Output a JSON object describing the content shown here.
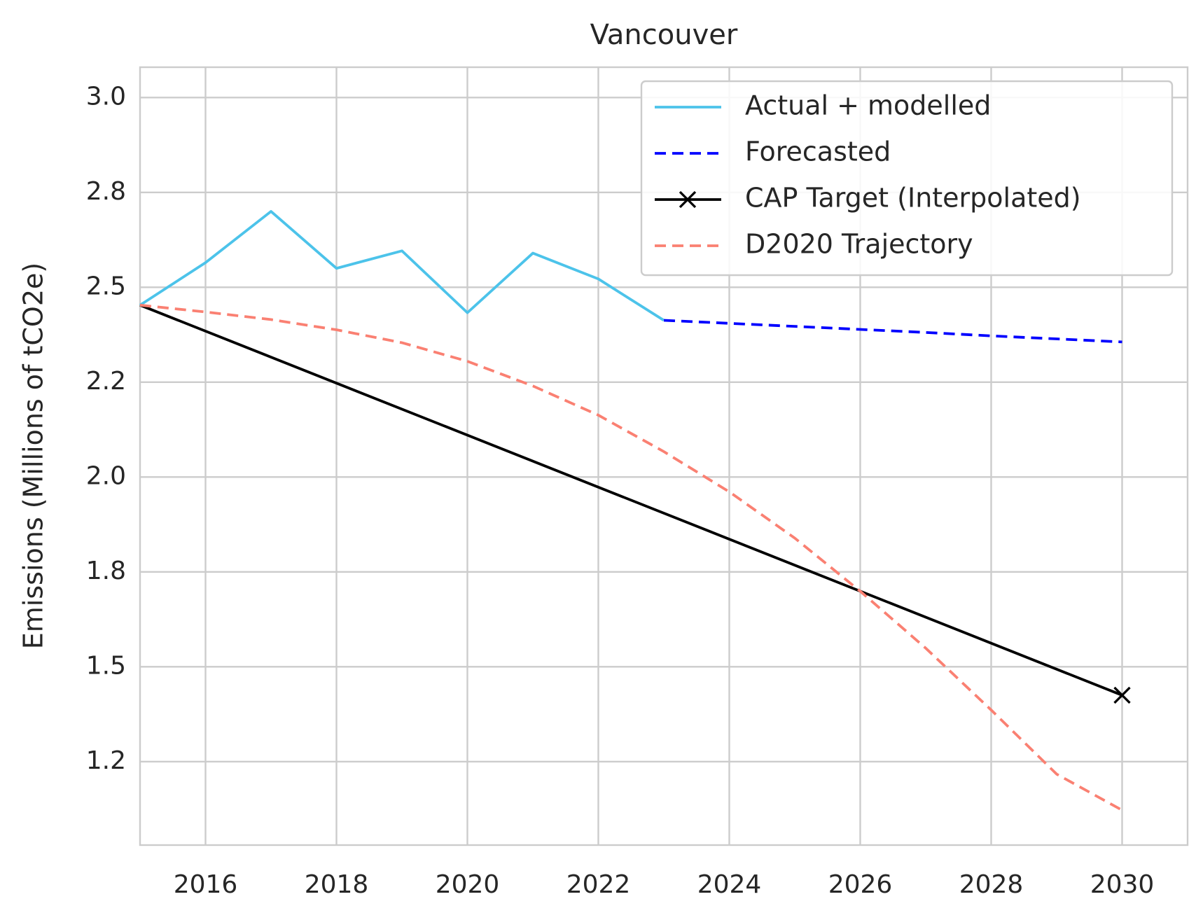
{
  "chart_data": {
    "type": "line",
    "title": "Vancouver",
    "y_label": "Emissions (Millions of tCO2e)",
    "xlim": [
      2015,
      2031
    ],
    "xticks": [
      2016,
      2018,
      2020,
      2022,
      2024,
      2026,
      2028,
      2030
    ],
    "ylim": [
      1.03,
      3.08
    ],
    "yticks": [
      {
        "value": 1.25,
        "label": "1.2"
      },
      {
        "value": 1.5,
        "label": "1.5"
      },
      {
        "value": 1.75,
        "label": "1.8"
      },
      {
        "value": 2.0,
        "label": "2.0"
      },
      {
        "value": 2.25,
        "label": "2.2"
      },
      {
        "value": 2.5,
        "label": "2.5"
      },
      {
        "value": 2.75,
        "label": "2.8"
      },
      {
        "value": 3.0,
        "label": "3.0"
      }
    ],
    "grid": true,
    "legend": "upper right",
    "series": [
      {
        "name": "Actual + modelled",
        "color": "#4cc3ea",
        "dash": "solid",
        "x": [
          2015,
          2016,
          2017,
          2018,
          2019,
          2020,
          2021,
          2022,
          2023
        ],
        "values": [
          2.453,
          2.565,
          2.7,
          2.55,
          2.596,
          2.433,
          2.59,
          2.522,
          2.413
        ]
      },
      {
        "name": "Forecasted",
        "color": "#0000ff",
        "dash": "dashed",
        "x": [
          2023,
          2024,
          2025,
          2026,
          2027,
          2028,
          2029,
          2030
        ],
        "values": [
          2.413,
          2.405,
          2.397,
          2.389,
          2.381,
          2.372,
          2.364,
          2.356
        ]
      },
      {
        "name": "CAP Target (Interpolated)",
        "color": "#000000",
        "dash": "solid",
        "marker": "x",
        "x": [
          2015,
          2030
        ],
        "values": [
          2.453,
          1.425
        ]
      },
      {
        "name": "D2020 Trajectory",
        "color": "#fa8072",
        "dash": "dashed",
        "x": [
          2015,
          2016,
          2017,
          2018,
          2019,
          2020,
          2021,
          2022,
          2023,
          2024,
          2025,
          2026,
          2027,
          2028,
          2029,
          2030
        ],
        "values": [
          2.453,
          2.435,
          2.415,
          2.388,
          2.354,
          2.305,
          2.24,
          2.163,
          2.067,
          1.961,
          1.839,
          1.699,
          1.549,
          1.386,
          1.217,
          1.122
        ]
      }
    ]
  }
}
